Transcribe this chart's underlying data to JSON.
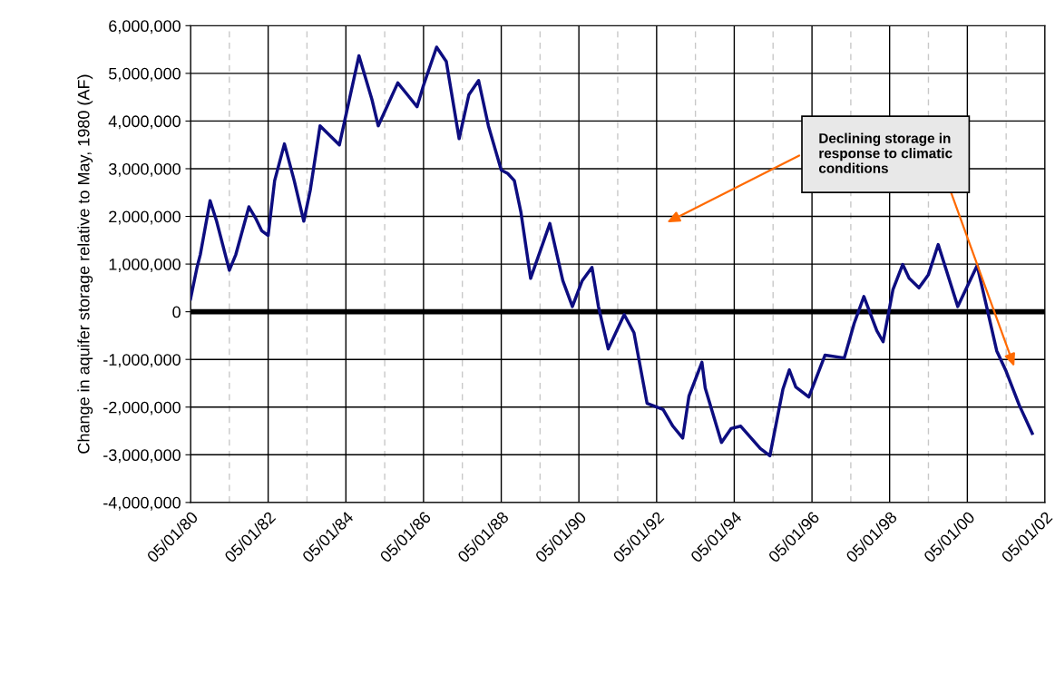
{
  "chart_data": {
    "type": "line",
    "ylabel": "Change in aquifer storage relative to May, 1980 (AF)",
    "x": [
      "1980-05",
      "1980-07",
      "1980-08",
      "1980-11",
      "1981-01",
      "1981-05",
      "1981-07",
      "1981-11",
      "1982-01",
      "1982-03",
      "1982-05",
      "1982-07",
      "1982-10",
      "1983-01",
      "1983-04",
      "1983-06",
      "1983-09",
      "1984-03",
      "1984-09",
      "1985-01",
      "1985-03",
      "1985-06",
      "1985-09",
      "1985-12",
      "1986-03",
      "1986-05",
      "1986-09",
      "1986-12",
      "1987-04",
      "1987-07",
      "1987-10",
      "1988-01",
      "1988-05",
      "1988-07",
      "1988-09",
      "1988-11",
      "1989-02",
      "1989-08",
      "1989-12",
      "1990-03",
      "1990-06",
      "1990-09",
      "1990-11",
      "1991-02",
      "1991-07",
      "1991-10",
      "1992-02",
      "1992-07",
      "1992-10",
      "1993-01",
      "1993-03",
      "1993-07",
      "1993-08",
      "1994-01",
      "1994-04",
      "1994-07",
      "1995-01",
      "1995-04",
      "1995-08",
      "1995-10",
      "1995-12",
      "1996-04",
      "1996-06",
      "1996-09",
      "1997-03",
      "1997-06",
      "1997-09",
      "1998-01",
      "1998-03",
      "1998-06",
      "1998-09",
      "1998-11",
      "1999-02",
      "1999-05",
      "1999-08",
      "2000-02",
      "2000-08",
      "2000-11",
      "2001-02",
      "2001-05",
      "2001-09",
      "2002-01"
    ],
    "series": [
      {
        "color": "#0d0d80",
        "values": [
          270000,
          930000,
          1200000,
          2330000,
          1900000,
          870000,
          1200000,
          2200000,
          1970000,
          1700000,
          1600000,
          2750000,
          3520000,
          2750000,
          1900000,
          2550000,
          3900000,
          3500000,
          5370000,
          4450000,
          3900000,
          4350000,
          4800000,
          4550000,
          4300000,
          4750000,
          5550000,
          5250000,
          3630000,
          4550000,
          4850000,
          3900000,
          2970000,
          2900000,
          2750000,
          2100000,
          700000,
          1850000,
          650000,
          110000,
          650000,
          930000,
          110000,
          -780000,
          -60000,
          -440000,
          -1920000,
          -2050000,
          -2400000,
          -2650000,
          -1770000,
          -1060000,
          -1600000,
          -2740000,
          -2450000,
          -2400000,
          -2870000,
          -3020000,
          -1630000,
          -1220000,
          -1580000,
          -1790000,
          -1440000,
          -910000,
          -970000,
          -250000,
          320000,
          -400000,
          -630000,
          460000,
          990000,
          700000,
          500000,
          780000,
          1410000,
          110000,
          970000,
          80000,
          -820000,
          -1250000,
          -1960000,
          -2550000
        ]
      }
    ],
    "xlim": [
      "1980-05-01",
      "2002-05-01"
    ],
    "xticks": [
      {
        "value": "1980-05-01",
        "label": "05/01/80"
      },
      {
        "value": "1981-05-01",
        "label": null
      },
      {
        "value": "1982-05-01",
        "label": "05/01/82"
      },
      {
        "value": "1983-05-01",
        "label": null
      },
      {
        "value": "1984-05-01",
        "label": "05/01/84"
      },
      {
        "value": "1985-05-01",
        "label": null
      },
      {
        "value": "1986-05-01",
        "label": "05/01/86"
      },
      {
        "value": "1987-05-01",
        "label": null
      },
      {
        "value": "1988-05-01",
        "label": "05/01/88"
      },
      {
        "value": "1989-05-01",
        "label": null
      },
      {
        "value": "1990-05-01",
        "label": "05/01/90"
      },
      {
        "value": "1991-05-01",
        "label": null
      },
      {
        "value": "1992-05-01",
        "label": "05/01/92"
      },
      {
        "value": "1993-05-01",
        "label": null
      },
      {
        "value": "1994-05-01",
        "label": "05/01/94"
      },
      {
        "value": "1995-05-01",
        "label": null
      },
      {
        "value": "1996-05-01",
        "label": "05/01/96"
      },
      {
        "value": "1997-05-01",
        "label": null
      },
      {
        "value": "1998-05-01",
        "label": "05/01/98"
      },
      {
        "value": "1999-05-01",
        "label": null
      },
      {
        "value": "2000-05-01",
        "label": "05/01/00"
      },
      {
        "value": "2001-05-01",
        "label": null
      },
      {
        "value": "2002-05-01",
        "label": "05/01/02"
      }
    ],
    "ylim": [
      -4000000,
      6000000
    ],
    "yticks": [
      {
        "value": -4000000,
        "label": "-4,000,000"
      },
      {
        "value": -3000000,
        "label": "-3,000,000"
      },
      {
        "value": -2000000,
        "label": "-2,000,000"
      },
      {
        "value": -1000000,
        "label": "-1,000,000"
      },
      0,
      {
        "value": 1000000,
        "label": "1,000,000"
      },
      {
        "value": 2000000,
        "label": "2,000,000"
      },
      {
        "value": 3000000,
        "label": "3,000,000"
      },
      {
        "value": 4000000,
        "label": "4,000,000"
      },
      {
        "value": 5000000,
        "label": "5,000,000"
      },
      {
        "value": 6000000,
        "label": "6,000,000"
      }
    ],
    "grid": true,
    "ref_lines": [
      {
        "axis": "y",
        "value": 0,
        "color": "#000000"
      }
    ],
    "annotations": [
      "Declining storage in\nresponse to climatic\nconditions"
    ]
  }
}
